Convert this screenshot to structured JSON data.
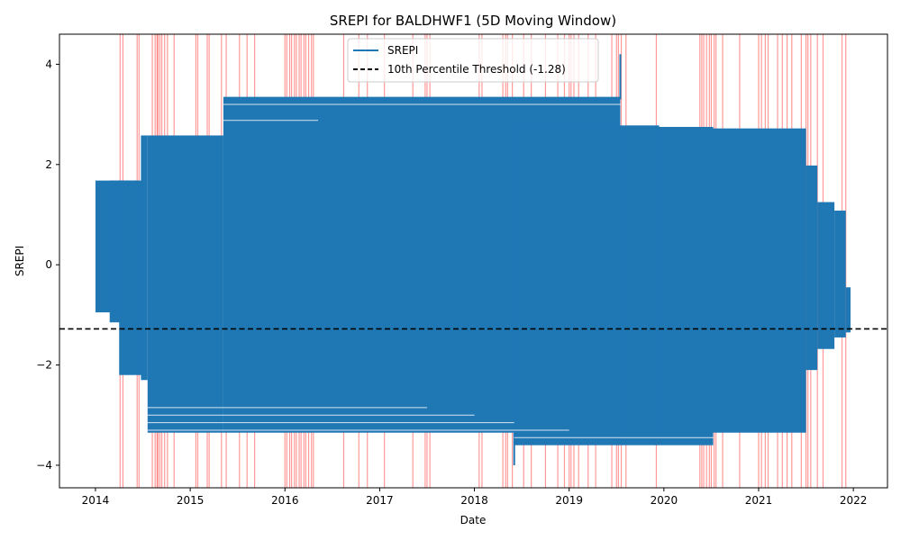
{
  "chart_data": {
    "type": "line",
    "title": "SREPI for BALDHWF1 (5D Moving Window)",
    "xlabel": "Date",
    "ylabel": "SREPI",
    "xlim": [
      2013.62,
      2022.36
    ],
    "ylim": [
      -4.45,
      4.6
    ],
    "x_ticks": [
      2014,
      2015,
      2016,
      2017,
      2018,
      2019,
      2020,
      2021,
      2022
    ],
    "x_tick_labels": [
      "2014",
      "2015",
      "2016",
      "2017",
      "2018",
      "2019",
      "2020",
      "2021",
      "2022"
    ],
    "y_ticks": [
      -4,
      -2,
      0,
      2,
      4
    ],
    "y_tick_labels": [
      "−4",
      "−2",
      "0",
      "2",
      "4"
    ],
    "grid": false,
    "legend": {
      "placement": "top-center",
      "entries": [
        {
          "label": "SREPI",
          "style": "solid",
          "color": "#1f77b4"
        },
        {
          "label": "10th Percentile Threshold (-1.28)",
          "style": "dashed",
          "color": "#000000"
        }
      ]
    },
    "threshold": -1.28,
    "series": [
      {
        "name": "SREPI",
        "color": "#1f77b4",
        "segments": [
          {
            "x": [
              2014.0,
              2014.45
            ],
            "y_min": -0.95,
            "y_max": 1.68
          },
          {
            "x": [
              2014.15,
              2014.45
            ],
            "y_min": -1.15,
            "y_max": 1.68
          },
          {
            "x": [
              2014.25,
              2014.5
            ],
            "y_min": -2.2,
            "y_max": 1.68
          },
          {
            "x": [
              2014.48,
              2014.55
            ],
            "y_min": -2.3,
            "y_max": 2.58
          },
          {
            "x": [
              2014.55,
              2015.35
            ],
            "y_min": -3.35,
            "y_max": 2.58
          },
          {
            "x": [
              2015.35,
              2019.54
            ],
            "y_min": -3.35,
            "y_max": 3.35
          },
          {
            "x": [
              2018.42,
              2020.52
            ],
            "y_min": -3.6,
            "y_max": 2.75
          },
          {
            "x": [
              2019.54,
              2019.95
            ],
            "y_min": -3.35,
            "y_max": 2.78
          },
          {
            "x": [
              2019.95,
              2021.5
            ],
            "y_min": -3.35,
            "y_max": 2.72
          },
          {
            "x": [
              2021.5,
              2021.62
            ],
            "y_min": -2.1,
            "y_max": 1.98
          },
          {
            "x": [
              2021.62,
              2021.8
            ],
            "y_min": -1.68,
            "y_max": 1.25
          },
          {
            "x": [
              2021.8,
              2021.92
            ],
            "y_min": -1.45,
            "y_max": 1.08
          },
          {
            "x": [
              2021.92,
              2021.97
            ],
            "y_min": -1.35,
            "y_max": -0.45
          }
        ],
        "spikes": [
          {
            "x": 2018.42,
            "y_min": -4.0,
            "y_max": -3.35
          },
          {
            "x": 2019.54,
            "y_min": 3.3,
            "y_max": 4.2
          }
        ],
        "horizontal_lines": [
          {
            "x": [
              2014.55,
              2017.5
            ],
            "y": -2.85
          },
          {
            "x": [
              2014.55,
              2018.0
            ],
            "y": -3.0
          },
          {
            "x": [
              2014.55,
              2018.42
            ],
            "y": -3.15
          },
          {
            "x": [
              2014.55,
              2019.0
            ],
            "y": -3.3
          },
          {
            "x": [
              2018.42,
              2020.52
            ],
            "y": -3.45
          },
          {
            "x": [
              2015.35,
              2019.54
            ],
            "y": 3.2
          },
          {
            "x": [
              2015.35,
              2016.35
            ],
            "y": 2.88
          }
        ]
      }
    ],
    "event_lines": [
      2014.26,
      2014.29,
      2014.44,
      2014.46,
      2014.6,
      2014.63,
      2014.65,
      2014.66,
      2014.68,
      2014.7,
      2014.73,
      2014.76,
      2014.83,
      2015.06,
      2015.08,
      2015.18,
      2015.2,
      2015.33,
      2015.38,
      2015.52,
      2015.6,
      2015.68,
      2016.0,
      2016.02,
      2016.05,
      2016.07,
      2016.1,
      2016.12,
      2016.15,
      2016.17,
      2016.2,
      2016.22,
      2016.25,
      2016.28,
      2016.3,
      2016.62,
      2016.78,
      2016.87,
      2017.05,
      2017.35,
      2017.48,
      2017.5,
      2017.53,
      2018.05,
      2018.08,
      2018.3,
      2018.33,
      2018.35,
      2018.4,
      2018.52,
      2018.6,
      2018.75,
      2018.88,
      2018.95,
      2019.0,
      2019.02,
      2019.05,
      2019.1,
      2019.2,
      2019.28,
      2019.45,
      2019.5,
      2019.52,
      2019.55,
      2019.6,
      2019.92,
      2020.38,
      2020.4,
      2020.42,
      2020.45,
      2020.48,
      2020.5,
      2020.53,
      2020.55,
      2020.62,
      2020.8,
      2021.0,
      2021.03,
      2021.07,
      2021.1,
      2021.2,
      2021.25,
      2021.3,
      2021.35,
      2021.45,
      2021.5,
      2021.52,
      2021.55,
      2021.62,
      2021.68,
      2021.88,
      2021.92
    ]
  }
}
